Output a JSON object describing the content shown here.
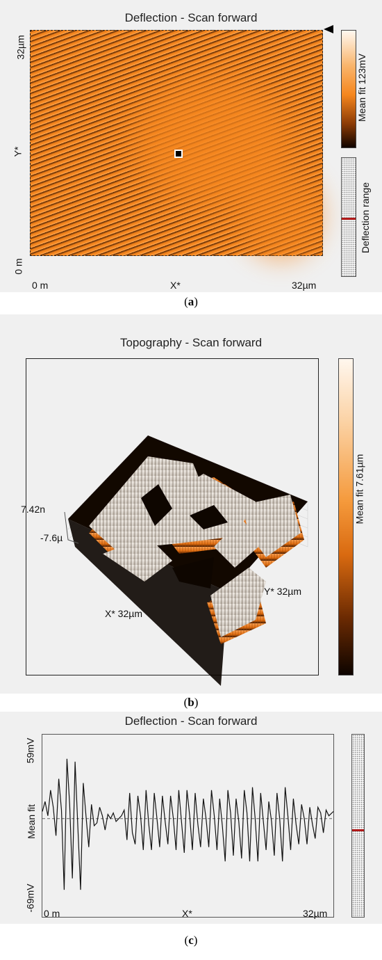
{
  "panel_a": {
    "title": "Deflection - Scan forward",
    "y_top": "32µm",
    "y_mid": "Y*",
    "y_bottom": "0 m",
    "x_left": "0 m",
    "x_mid": "X*",
    "x_right": "32µm",
    "colorbar_label": "Mean fit 123mV",
    "range_label": "Deflection range",
    "caption_letter": "a",
    "colors": {
      "orange": "#f5861e",
      "dark": "#1a0a00",
      "panel_bg": "#f0f0f0"
    }
  },
  "panel_b": {
    "title": "Topography - Scan forward",
    "z_top": "7.42n",
    "z_bottom": "-7.6µ",
    "x_label": "X* 32µm",
    "y_label": "Y* 32µm",
    "colorbar_label": "Mean fit 7.61µm",
    "caption_letter": "b"
  },
  "panel_c": {
    "title": "Deflection - Scan forward",
    "y_top": "59mV",
    "y_mid": "Mean fit",
    "y_bottom": "-69mV",
    "x_left": "0 m",
    "x_mid": "X*",
    "x_right": "32µm",
    "caption_letter": "c"
  },
  "chart_data": {
    "type": "line",
    "title": "Deflection - Scan forward",
    "xlabel": "X*",
    "ylabel": "Mean fit",
    "xlim_labels": [
      "0 m",
      "32µm"
    ],
    "ylim_labels": [
      "-69mV",
      "59mV"
    ],
    "ylim": [
      -69,
      59
    ],
    "x": [
      0,
      0.3,
      0.6,
      0.9,
      1.2,
      1.5,
      1.8,
      2.1,
      2.4,
      2.7,
      3.0,
      3.3,
      3.6,
      3.9,
      4.2,
      4.5,
      4.8,
      5.1,
      5.4,
      5.7,
      6.0,
      6.3,
      6.6,
      6.9,
      7.2,
      7.5,
      7.8,
      8.1,
      8.4,
      8.7,
      9.0,
      9.3,
      9.6,
      9.9,
      10.2,
      10.5,
      10.8,
      11.1,
      11.4,
      11.7,
      12.0,
      12.3,
      12.6,
      12.9,
      13.2,
      13.5,
      13.8,
      14.1,
      14.4,
      14.7,
      15.0,
      15.3,
      15.6,
      15.9,
      16.2,
      16.5,
      16.8,
      17.1,
      17.4,
      17.7,
      18.0,
      18.3,
      18.6,
      18.9,
      19.2,
      19.5,
      19.8,
      20.1,
      20.4,
      20.7,
      21.0,
      21.3,
      21.6,
      21.9,
      22.2,
      22.5,
      22.8,
      23.1,
      23.4,
      23.7,
      24.0,
      24.3,
      24.6,
      24.9,
      25.2,
      25.5,
      25.8,
      26.1,
      26.4,
      26.7,
      27.0,
      27.3,
      27.6,
      27.9,
      28.2,
      28.5,
      28.8,
      29.1,
      29.4,
      29.7,
      30.0,
      30.3,
      30.6,
      30.9,
      31.2,
      31.5,
      32.0
    ],
    "y": [
      5,
      12,
      2,
      20,
      8,
      -12,
      28,
      6,
      -50,
      42,
      10,
      -42,
      40,
      -6,
      -50,
      25,
      2,
      -20,
      10,
      -5,
      -3,
      8,
      2,
      -8,
      3,
      0,
      4,
      -2,
      0,
      2,
      6,
      -15,
      18,
      -10,
      -18,
      16,
      2,
      -22,
      20,
      -4,
      -22,
      18,
      0,
      -20,
      16,
      -2,
      -18,
      16,
      0,
      -22,
      20,
      -2,
      -24,
      20,
      2,
      -22,
      18,
      -4,
      -20,
      14,
      0,
      -20,
      20,
      2,
      -22,
      14,
      -6,
      -30,
      20,
      4,
      -26,
      14,
      -2,
      -28,
      20,
      4,
      -30,
      22,
      0,
      -30,
      18,
      -2,
      -22,
      12,
      -2,
      -26,
      18,
      0,
      -30,
      22,
      2,
      -22,
      14,
      -4,
      -18,
      10,
      0,
      -18,
      8,
      -4,
      -14,
      8,
      4,
      -10,
      6,
      2,
      5
    ]
  }
}
